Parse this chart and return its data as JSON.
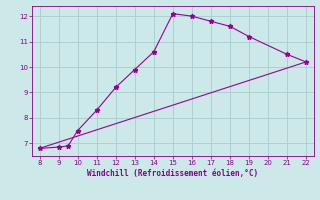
{
  "line1_x": [
    8,
    9,
    9.5,
    10,
    11,
    12,
    13,
    14,
    15,
    16,
    17,
    18,
    19,
    21,
    22
  ],
  "line1_y": [
    6.8,
    6.85,
    6.9,
    7.5,
    8.3,
    9.2,
    9.9,
    10.6,
    12.1,
    12.0,
    11.8,
    11.6,
    11.2,
    10.5,
    10.2
  ],
  "line2_x": [
    8,
    22
  ],
  "line2_y": [
    6.8,
    10.2
  ],
  "line_color": "#990099",
  "bg_color": "#cce8e8",
  "grid_color": "#aacccc",
  "xlabel": "Windchill (Refroidissement éolien,°C)",
  "xlabel_color": "#880088",
  "tick_color": "#880088",
  "ylim": [
    6.5,
    12.4
  ],
  "xlim": [
    7.6,
    22.4
  ],
  "yticks": [
    7,
    8,
    9,
    10,
    11,
    12
  ],
  "xticks": [
    8,
    9,
    10,
    11,
    12,
    13,
    14,
    15,
    16,
    17,
    18,
    19,
    20,
    21,
    22
  ]
}
